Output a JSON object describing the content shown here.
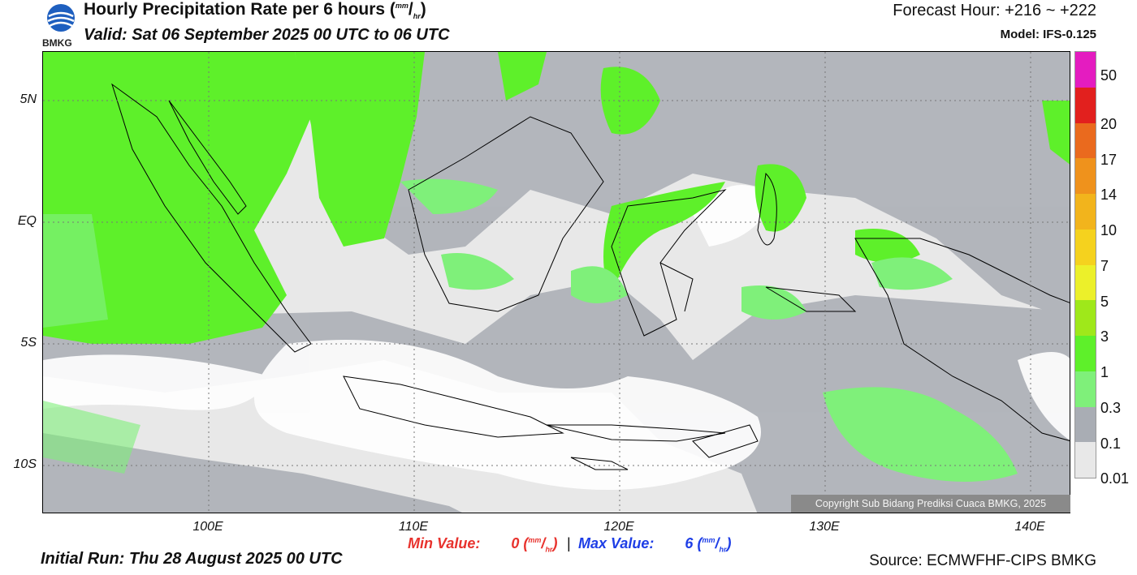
{
  "header": {
    "title_main": "Hourly Precipitation Rate per 6 hours (",
    "title_unit_top": "mm",
    "title_unit_bottom": "hr",
    "title_close": ")",
    "valid": "Valid: Sat 06 September 2025 00 UTC to 06 UTC",
    "forecast_hour": "Forecast Hour: +216 ~ +222",
    "model": "Model: IFS-0.125"
  },
  "logo": {
    "text": "BMKG"
  },
  "colorbar": {
    "levels": [
      {
        "label": "0.01",
        "color": "#e8e8e8"
      },
      {
        "label": "0.1",
        "color": "#a9adb4"
      },
      {
        "label": "0.3",
        "color": "#7ff07a"
      },
      {
        "label": "1",
        "color": "#5ef02a"
      },
      {
        "label": "3",
        "color": "#9fe81a"
      },
      {
        "label": "5",
        "color": "#ecf02a"
      },
      {
        "label": "7",
        "color": "#f5d21e"
      },
      {
        "label": "10",
        "color": "#f2b41c"
      },
      {
        "label": "14",
        "color": "#ef921c"
      },
      {
        "label": "17",
        "color": "#ea6a1e"
      },
      {
        "label": "20",
        "color": "#e2201e"
      },
      {
        "label": "50",
        "color": "#e41cc0"
      }
    ]
  },
  "axes": {
    "lat_labels": [
      "5N",
      "EQ",
      "5S",
      "10S"
    ],
    "lon_labels": [
      "100E",
      "110E",
      "120E",
      "130E",
      "140E"
    ]
  },
  "map": {
    "copyright": "Copyright Sub Bidang Prediksi Cuaca BMKG, 2025",
    "colors": {
      "heavy": "#5ef02a",
      "light": "#7ff07a",
      "gray": "#a9adb4",
      "lightgray": "#e8e8e8",
      "land_outline": "#000000"
    }
  },
  "footer": {
    "min_label": "Min Value:",
    "min_value": "0",
    "max_label": "Max Value:",
    "max_value": "6",
    "unit_top": "mm",
    "unit_bottom": "hr",
    "separator": "|",
    "initial_run": "Initial Run: Thu 28 August 2025 00 UTC",
    "source": "Source: ECMWFHF-CIPS BMKG",
    "min_color": "#e8322d",
    "max_color": "#1e3ee6"
  }
}
